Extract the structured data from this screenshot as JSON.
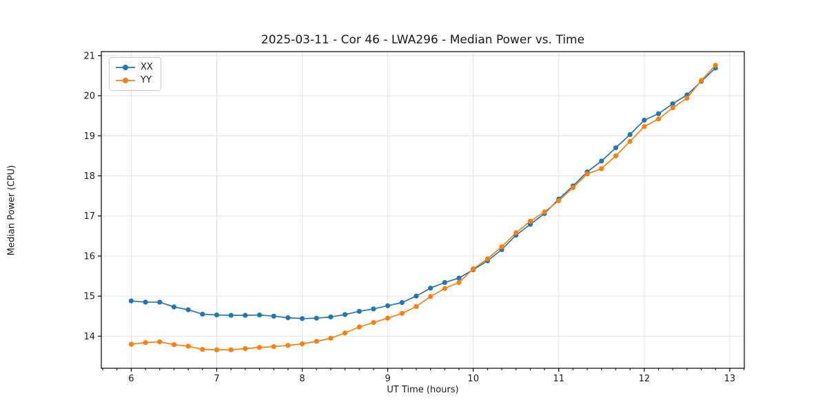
{
  "figure": {
    "title": "2025-03-11 - Cor 46 - LWA296 - Median Power vs. Time",
    "xlabel": "UT Time (hours)",
    "ylabel": "Median Power (CPU)"
  },
  "legend": {
    "items": [
      {
        "label": "XX",
        "color": "#1f77b4"
      },
      {
        "label": "YY",
        "color": "#ff7f0e"
      }
    ]
  },
  "colors": {
    "series_blue": "#1f77b4",
    "series_orange": "#ff7f0e",
    "grid": "#e2e2e2",
    "spine": "#000000",
    "text": "#1a1a1a"
  },
  "chart_data": {
    "type": "line",
    "title": "2025-03-11 - Cor 46 - LWA296 - Median Power vs. Time",
    "xlabel": "UT Time (hours)",
    "ylabel": "Median Power (CPU)",
    "xlim": [
      5.65,
      13.17
    ],
    "ylim": [
      13.2,
      21.1
    ],
    "x_ticks": [
      6,
      7,
      8,
      9,
      10,
      11,
      12,
      13
    ],
    "x_tick_labels": [
      "6",
      "7",
      "8",
      "9",
      "10",
      "11",
      "12",
      "13"
    ],
    "y_ticks": [
      14,
      15,
      16,
      17,
      18,
      19,
      20,
      21
    ],
    "y_tick_labels": [
      "14",
      "15",
      "16",
      "17",
      "18",
      "19",
      "20",
      "21"
    ],
    "x_minor_interval": 0.166667,
    "grid": true,
    "legend_position": "upper left",
    "x": [
      6.0,
      6.167,
      6.333,
      6.5,
      6.667,
      6.833,
      7.0,
      7.167,
      7.333,
      7.5,
      7.667,
      7.833,
      8.0,
      8.167,
      8.333,
      8.5,
      8.667,
      8.833,
      9.0,
      9.167,
      9.333,
      9.5,
      9.667,
      9.833,
      10.0,
      10.167,
      10.333,
      10.5,
      10.667,
      10.833,
      11.0,
      11.167,
      11.333,
      11.5,
      11.667,
      11.833,
      12.0,
      12.167,
      12.333,
      12.5,
      12.667,
      12.833
    ],
    "series": [
      {
        "name": "XX",
        "color": "#1f77b4",
        "marker": "circle",
        "values": [
          14.88,
          14.85,
          14.85,
          14.73,
          14.66,
          14.55,
          14.53,
          14.52,
          14.52,
          14.53,
          14.5,
          14.46,
          14.44,
          14.45,
          14.48,
          14.54,
          14.62,
          14.68,
          14.76,
          14.84,
          15.0,
          15.2,
          15.34,
          15.45,
          15.66,
          15.88,
          16.16,
          16.52,
          16.79,
          17.06,
          17.42,
          17.75,
          18.1,
          18.37,
          18.7,
          19.03,
          19.39,
          19.55,
          19.8,
          20.02,
          20.36,
          20.69
        ]
      },
      {
        "name": "YY",
        "color": "#ff7f0e",
        "marker": "circle",
        "values": [
          13.8,
          13.84,
          13.86,
          13.79,
          13.75,
          13.67,
          13.66,
          13.66,
          13.69,
          13.72,
          13.74,
          13.77,
          13.81,
          13.87,
          13.95,
          14.08,
          14.23,
          14.34,
          14.45,
          14.57,
          14.74,
          14.99,
          15.19,
          15.34,
          15.68,
          15.93,
          16.23,
          16.58,
          16.87,
          17.1,
          17.38,
          17.71,
          18.05,
          18.18,
          18.5,
          18.86,
          19.23,
          19.42,
          19.7,
          19.94,
          20.38,
          20.76
        ]
      }
    ]
  }
}
